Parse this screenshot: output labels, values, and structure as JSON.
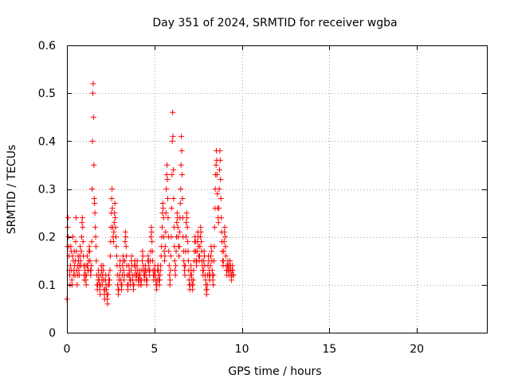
{
  "chart_data": {
    "type": "scatter",
    "title": "Day 351 of 2024, SRMTID for receiver wgba",
    "xlabel": "GPS time / hours",
    "ylabel": "SRMTID / TECUs",
    "xlim": [
      0,
      24
    ],
    "ylim": [
      0,
      0.6
    ],
    "xticks": [
      0,
      5,
      10,
      15,
      20
    ],
    "yticks": [
      0,
      0.1,
      0.2,
      0.3,
      0.4,
      0.5,
      0.6
    ],
    "xtick_labels": [
      "0",
      "5",
      "10",
      "15",
      "20"
    ],
    "ytick_labels": [
      "0",
      "0.1",
      "0.2",
      "0.3",
      "0.4",
      "0.5",
      "0.6"
    ],
    "grid": true,
    "legend": "none",
    "marker": "+",
    "series": [
      {
        "name": "SRMTID",
        "color": "#ff0000",
        "x_start": 0.0,
        "x_step": 0.02,
        "y": [
          0.07,
          0.18,
          0.22,
          0.24,
          0.2,
          0.18,
          0.16,
          0.13,
          0.12,
          0.1,
          0.14,
          0.18,
          0.17,
          0.13,
          0.11,
          0.1,
          0.16,
          0.2,
          0.15,
          0.12,
          0.13,
          0.17,
          0.14,
          0.12,
          0.15,
          0.19,
          0.24,
          0.17,
          0.13,
          0.1,
          0.12,
          0.14,
          0.16,
          0.15,
          0.13,
          0.12,
          0.14,
          0.16,
          0.18,
          0.15,
          0.14,
          0.17,
          0.2,
          0.23,
          0.24,
          0.22,
          0.19,
          0.16,
          0.14,
          0.12,
          0.11,
          0.13,
          0.14,
          0.12,
          0.11,
          0.1,
          0.12,
          0.14,
          0.16,
          0.14,
          0.13,
          0.13,
          0.15,
          0.17,
          0.18,
          0.17,
          0.15,
          0.13,
          0.12,
          0.13,
          0.14,
          0.19,
          0.3,
          0.4,
          0.5,
          0.52,
          0.45,
          0.35,
          0.28,
          0.27,
          0.25,
          0.22,
          0.2,
          0.18,
          0.15,
          0.12,
          0.1,
          0.09,
          0.1,
          0.11,
          0.13,
          0.12,
          0.11,
          0.1,
          0.09,
          0.08,
          0.1,
          0.12,
          0.14,
          0.13,
          0.11,
          0.1,
          0.12,
          0.14,
          0.13,
          0.11,
          0.09,
          0.08,
          0.07,
          0.09,
          0.11,
          0.12,
          0.1,
          0.09,
          0.08,
          0.07,
          0.06,
          0.08,
          0.1,
          0.12,
          0.11,
          0.1,
          0.11,
          0.13,
          0.16,
          0.19,
          0.22,
          0.25,
          0.28,
          0.3,
          0.26,
          0.22,
          0.2,
          0.19,
          0.21,
          0.23,
          0.25,
          0.27,
          0.24,
          0.22,
          0.2,
          0.18,
          0.16,
          0.14,
          0.12,
          0.1,
          0.09,
          0.08,
          0.09,
          0.11,
          0.12,
          0.14,
          0.15,
          0.13,
          0.11,
          0.1,
          0.09,
          0.1,
          0.12,
          0.14,
          0.16,
          0.15,
          0.13,
          0.11,
          0.12,
          0.15,
          0.19,
          0.21,
          0.2,
          0.18,
          0.16,
          0.14,
          0.12,
          0.1,
          0.09,
          0.1,
          0.12,
          0.14,
          0.13,
          0.12,
          0.11,
          0.1,
          0.11,
          0.13,
          0.15,
          0.16,
          0.14,
          0.12,
          0.11,
          0.1,
          0.09,
          0.1,
          0.12,
          0.14,
          0.15,
          0.14,
          0.13,
          0.12,
          0.11,
          0.12,
          0.14,
          0.15,
          0.13,
          0.12,
          0.11,
          0.1,
          0.11,
          0.12,
          0.13,
          0.12,
          0.11,
          0.1,
          0.1,
          0.11,
          0.13,
          0.15,
          0.17,
          0.16,
          0.14,
          0.13,
          0.12,
          0.11,
          0.12,
          0.13,
          0.14,
          0.13,
          0.12,
          0.11,
          0.1,
          0.11,
          0.13,
          0.15,
          0.16,
          0.15,
          0.14,
          0.13,
          0.12,
          0.13,
          0.15,
          0.17,
          0.2,
          0.22,
          0.21,
          0.19,
          0.17,
          0.15,
          0.13,
          0.12,
          0.11,
          0.12,
          0.13,
          0.14,
          0.13,
          0.12,
          0.11,
          0.1,
          0.09,
          0.1,
          0.11,
          0.13,
          0.14,
          0.13,
          0.12,
          0.11,
          0.1,
          0.11,
          0.12,
          0.13,
          0.14,
          0.16,
          0.18,
          0.2,
          0.22,
          0.25,
          0.27,
          0.26,
          0.24,
          0.2,
          0.17,
          0.15,
          0.16,
          0.18,
          0.21,
          0.25,
          0.3,
          0.33,
          0.35,
          0.32,
          0.28,
          0.24,
          0.2,
          0.17,
          0.14,
          0.12,
          0.1,
          0.11,
          0.13,
          0.16,
          0.2,
          0.26,
          0.33,
          0.4,
          0.46,
          0.41,
          0.34,
          0.28,
          0.22,
          0.18,
          0.15,
          0.13,
          0.12,
          0.14,
          0.17,
          0.2,
          0.23,
          0.25,
          0.24,
          0.22,
          0.2,
          0.18,
          0.16,
          0.18,
          0.21,
          0.24,
          0.27,
          0.3,
          0.35,
          0.41,
          0.38,
          0.33,
          0.28,
          0.24,
          0.2,
          0.17,
          0.15,
          0.14,
          0.13,
          0.12,
          0.14,
          0.17,
          0.2,
          0.23,
          0.25,
          0.24,
          0.22,
          0.19,
          0.17,
          0.15,
          0.13,
          0.11,
          0.1,
          0.09,
          0.1,
          0.12,
          0.14,
          0.13,
          0.12,
          0.11,
          0.1,
          0.09,
          0.1,
          0.11,
          0.13,
          0.15,
          0.17,
          0.19,
          0.2,
          0.19,
          0.17,
          0.15,
          0.14,
          0.15,
          0.17,
          0.19,
          0.21,
          0.2,
          0.18,
          0.16,
          0.15,
          0.16,
          0.18,
          0.2,
          0.22,
          0.21,
          0.19,
          0.17,
          0.15,
          0.14,
          0.13,
          0.12,
          0.13,
          0.15,
          0.17,
          0.16,
          0.14,
          0.12,
          0.11,
          0.1,
          0.09,
          0.08,
          0.09,
          0.1,
          0.12,
          0.14,
          0.16,
          0.15,
          0.13,
          0.12,
          0.11,
          0.12,
          0.14,
          0.16,
          0.18,
          0.17,
          0.15,
          0.13,
          0.12,
          0.11,
          0.1,
          0.12,
          0.15,
          0.18,
          0.22,
          0.26,
          0.3,
          0.33,
          0.35,
          0.38,
          0.36,
          0.33,
          0.29,
          0.26,
          0.24,
          0.23,
          0.26,
          0.3,
          0.34,
          0.38,
          0.36,
          0.32,
          0.28,
          0.24,
          0.21,
          0.19,
          0.17,
          0.15,
          0.14,
          0.15,
          0.17,
          0.19,
          0.21,
          0.22,
          0.2,
          0.18,
          0.16,
          0.14,
          0.13,
          0.12,
          0.13,
          0.14,
          0.15,
          0.14,
          0.13,
          0.12,
          0.13,
          0.14,
          0.15,
          0.14,
          0.13,
          0.12,
          0.11,
          0.12,
          0.13,
          0.14,
          0.13,
          0.12,
          0.12
        ]
      }
    ]
  }
}
